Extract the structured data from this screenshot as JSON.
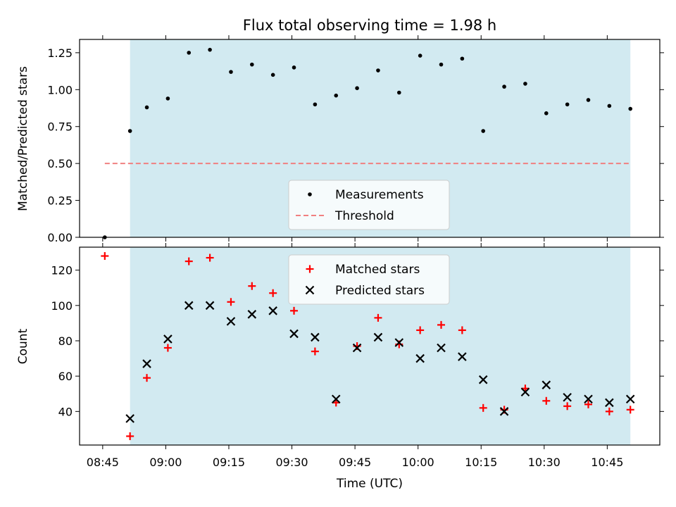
{
  "chart_data": {
    "title": "Flux total observing time = 1.98 h",
    "xlabel": "Time (UTC)",
    "x_tick_labels": [
      "08:45",
      "09:00",
      "09:15",
      "09:30",
      "09:45",
      "10:00",
      "10:15",
      "10:30",
      "10:45"
    ],
    "x_ticks_minutes": [
      525,
      540,
      555,
      570,
      585,
      600,
      615,
      630,
      645
    ],
    "xlim_minutes": [
      519.5,
      657.5
    ],
    "shaded_range_minutes": [
      531.5,
      650.5
    ],
    "shade_color": "#add8e6",
    "times_minutes": [
      525.5,
      531.5,
      535.5,
      540.5,
      545.5,
      550.5,
      555.5,
      560.5,
      565.5,
      570.5,
      575.5,
      580.5,
      585.5,
      590.5,
      595.5,
      600.5,
      605.5,
      610.5,
      615.5,
      620.5,
      625.5,
      630.5,
      635.5,
      640.5,
      645.5,
      650.5
    ],
    "panels": [
      {
        "type": "scatter",
        "ylabel": "Matched/Predicted stars",
        "ylim": [
          0,
          1.34
        ],
        "y_ticks": [
          "0.00",
          "0.25",
          "0.50",
          "0.75",
          "1.00",
          "1.25"
        ],
        "series": [
          {
            "name": "Measurements",
            "marker": "dot",
            "color": "#000000",
            "values": [
              0.0,
              0.72,
              0.88,
              0.94,
              1.25,
              1.27,
              1.12,
              1.17,
              1.1,
              1.15,
              0.9,
              0.96,
              1.01,
              1.13,
              0.98,
              1.23,
              1.17,
              1.21,
              0.72,
              1.02,
              1.04,
              0.84,
              0.9,
              0.93,
              0.89,
              0.87
            ]
          }
        ],
        "threshold": {
          "name": "Threshold",
          "value": 0.5,
          "x_range_minutes": [
            525.5,
            650.5
          ],
          "color": "#f08080"
        },
        "legend": "lower-center"
      },
      {
        "type": "scatter",
        "ylabel": "Count",
        "ylim": [
          21,
          133
        ],
        "y_ticks": [
          "40",
          "60",
          "80",
          "100",
          "120"
        ],
        "series": [
          {
            "name": "Matched stars",
            "marker": "plus",
            "color": "#ff0000",
            "values": [
              128,
              26,
              59,
              76,
              125,
              127,
              102,
              111,
              107,
              97,
              74,
              45,
              77,
              93,
              78,
              86,
              89,
              86,
              42,
              41,
              53,
              46,
              43,
              44,
              40,
              41
            ]
          },
          {
            "name": "Predicted stars",
            "marker": "x",
            "color": "#000000",
            "values": [
              null,
              36,
              67,
              81,
              100,
              100,
              91,
              95,
              97,
              84,
              82,
              47,
              76,
              82,
              79,
              70,
              76,
              71,
              58,
              40,
              51,
              55,
              48,
              47,
              45,
              47
            ]
          }
        ],
        "legend": "upper-center"
      }
    ]
  }
}
